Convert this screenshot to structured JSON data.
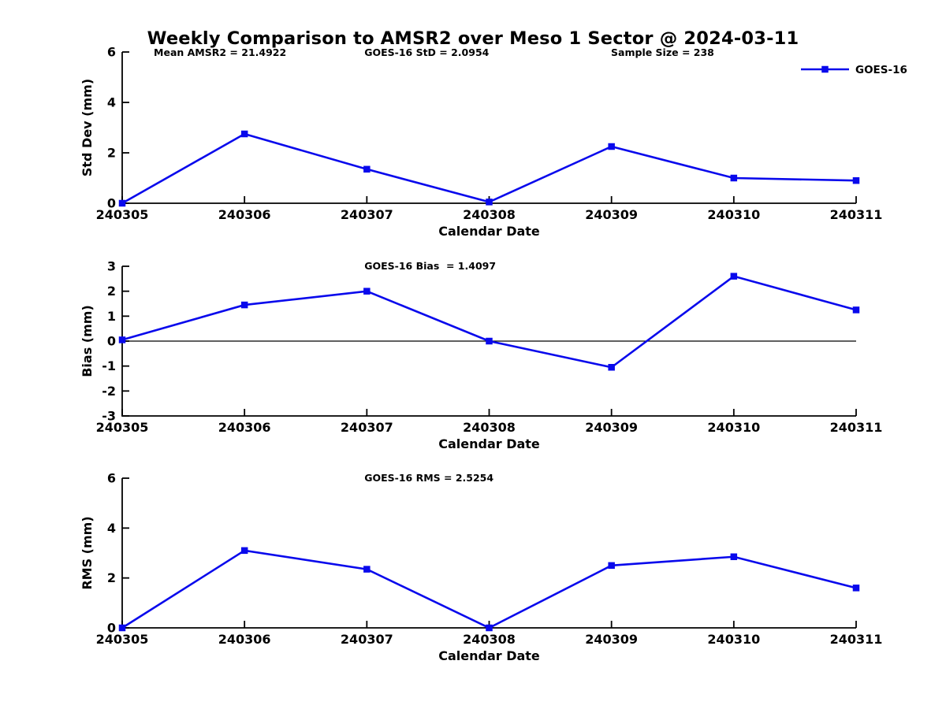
{
  "figure": {
    "title": "Weekly Comparison to AMSR2 over Meso 1 Sector @ 2024-03-11",
    "background": "#ffffff",
    "line_color": "#0909EC",
    "axis_color": "#000000"
  },
  "chart_data": [
    {
      "type": "line",
      "subplot": "std-dev",
      "annotations": [
        "Mean AMSR2 = 21.4922",
        "GOES-16 StD = 2.0954",
        "Sample Size = 238"
      ],
      "xlabel": "Calendar Date",
      "ylabel": "Std Dev (mm)",
      "ylim": [
        0,
        6
      ],
      "yticks": [
        0,
        2,
        4,
        6
      ],
      "grid": false,
      "categories": [
        "240305",
        "240306",
        "240307",
        "240308",
        "240309",
        "240310",
        "240311"
      ],
      "series": [
        {
          "name": "GOES-16",
          "marker": "square",
          "values": [
            0.0,
            2.75,
            1.35,
            0.05,
            2.25,
            1.0,
            0.9
          ]
        }
      ],
      "legend": {
        "label": "GOES-16",
        "position": "top-right"
      }
    },
    {
      "type": "line",
      "subplot": "bias",
      "title": "GOES-16 Bias  = 1.4097",
      "xlabel": "Calendar Date",
      "ylabel": "Bias (mm)",
      "ylim": [
        -3,
        3
      ],
      "yticks": [
        -3,
        -2,
        -1,
        0,
        1,
        2,
        3
      ],
      "zero_line": true,
      "grid": false,
      "categories": [
        "240305",
        "240306",
        "240307",
        "240308",
        "240309",
        "240310",
        "240311"
      ],
      "series": [
        {
          "name": "GOES-16",
          "marker": "square",
          "values": [
            0.05,
            1.45,
            2.0,
            0.0,
            -1.05,
            2.6,
            1.25
          ]
        }
      ]
    },
    {
      "type": "line",
      "subplot": "rms",
      "title": "GOES-16 RMS = 2.5254",
      "xlabel": "Calendar Date",
      "ylabel": "RMS (mm)",
      "ylim": [
        0,
        6
      ],
      "yticks": [
        0,
        2,
        4,
        6
      ],
      "grid": false,
      "categories": [
        "240305",
        "240306",
        "240307",
        "240308",
        "240309",
        "240310",
        "240311"
      ],
      "series": [
        {
          "name": "GOES-16",
          "marker": "square",
          "values": [
            0.0,
            3.1,
            2.35,
            0.0,
            2.5,
            2.85,
            1.6
          ]
        }
      ]
    }
  ]
}
